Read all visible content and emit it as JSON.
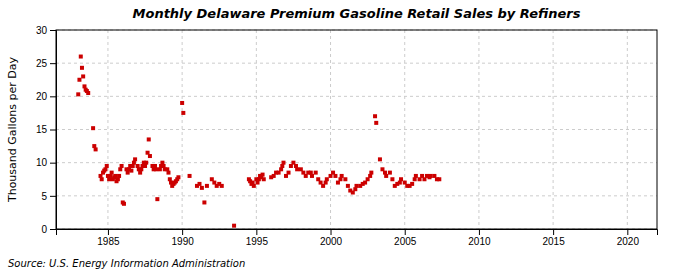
{
  "chart_data": {
    "type": "scatter",
    "title": "Monthly Delaware Premium Gasoline Retail Sales by Refiners",
    "ylabel": "Thousand Gallons per Day",
    "annotations": [
      "Source: U.S. Energy Information Administration"
    ],
    "color": "#CC0000",
    "marker": "square",
    "grid": true,
    "xlim": [
      1981.5,
      2022
    ],
    "ylim": [
      0,
      30
    ],
    "xticks": [
      1985,
      1990,
      1995,
      2000,
      2005,
      2010,
      2015,
      2020
    ],
    "yticks": [
      0,
      5,
      10,
      15,
      20,
      25,
      30
    ],
    "x": [
      1983.0,
      1983.08,
      1983.17,
      1983.25,
      1983.33,
      1983.42,
      1983.5,
      1983.58,
      1983.67,
      1984.0,
      1984.08,
      1984.17,
      1984.5,
      1984.58,
      1984.67,
      1984.75,
      1984.83,
      1984.92,
      1985.0,
      1985.08,
      1985.17,
      1985.25,
      1985.33,
      1985.42,
      1985.5,
      1985.58,
      1985.67,
      1985.75,
      1985.83,
      1985.92,
      1986.0,
      1986.08,
      1986.25,
      1986.33,
      1986.42,
      1986.5,
      1986.58,
      1986.67,
      1986.75,
      1986.83,
      1987.0,
      1987.08,
      1987.17,
      1987.25,
      1987.33,
      1987.42,
      1987.5,
      1987.58,
      1987.67,
      1987.75,
      1987.83,
      1988.0,
      1988.08,
      1988.17,
      1988.25,
      1988.33,
      1988.5,
      1988.58,
      1988.67,
      1988.75,
      1988.83,
      1989.0,
      1989.08,
      1989.17,
      1989.25,
      1989.33,
      1989.42,
      1989.5,
      1989.58,
      1989.67,
      1989.75,
      1990.0,
      1990.08,
      1990.5,
      1991.0,
      1991.17,
      1991.33,
      1991.5,
      1991.67,
      1992.0,
      1992.17,
      1992.33,
      1992.5,
      1992.67,
      1993.5,
      1994.5,
      1994.58,
      1994.67,
      1994.75,
      1994.83,
      1995.0,
      1995.08,
      1995.17,
      1995.25,
      1995.33,
      1995.42,
      1995.5,
      1996.0,
      1996.17,
      1996.33,
      1996.5,
      1996.67,
      1996.75,
      1996.83,
      1997.0,
      1997.17,
      1997.33,
      1997.5,
      1997.67,
      1997.75,
      1998.0,
      1998.17,
      1998.33,
      1998.5,
      1998.67,
      1998.75,
      1999.0,
      1999.17,
      1999.33,
      1999.5,
      1999.67,
      1999.75,
      2000.0,
      2000.17,
      2000.33,
      2000.5,
      2000.67,
      2000.75,
      2001.0,
      2001.17,
      2001.33,
      2001.5,
      2001.67,
      2001.75,
      2002.0,
      2002.17,
      2002.33,
      2002.5,
      2002.67,
      2002.75,
      2003.0,
      2003.08,
      2003.33,
      2003.5,
      2003.67,
      2003.75,
      2004.0,
      2004.17,
      2004.33,
      2004.5,
      2004.67,
      2004.75,
      2005.0,
      2005.17,
      2005.33,
      2005.5,
      2005.67,
      2005.75,
      2006.0,
      2006.17,
      2006.33,
      2006.5,
      2006.67,
      2006.75,
      2007.0,
      2007.17,
      2007.33
    ],
    "values": [
      20.3,
      22.5,
      26.0,
      24.3,
      23.0,
      21.5,
      21.0,
      20.8,
      20.5,
      15.2,
      12.5,
      12.0,
      8.0,
      7.5,
      8.5,
      8.8,
      9.0,
      9.5,
      8.0,
      7.5,
      8.0,
      8.5,
      7.5,
      7.8,
      8.0,
      7.2,
      7.5,
      8.0,
      9.0,
      9.5,
      4.0,
      3.8,
      9.0,
      8.5,
      9.0,
      9.5,
      8.8,
      9.5,
      10.0,
      10.5,
      9.5,
      9.0,
      8.5,
      9.0,
      9.5,
      10.0,
      9.5,
      10.0,
      11.5,
      13.5,
      11.0,
      9.5,
      9.0,
      9.5,
      9.0,
      4.5,
      9.0,
      9.5,
      10.0,
      9.5,
      9.0,
      9.0,
      8.5,
      7.5,
      7.0,
      6.5,
      6.8,
      7.0,
      7.2,
      7.5,
      7.8,
      19.0,
      17.5,
      8.0,
      6.5,
      6.8,
      6.2,
      4.0,
      6.5,
      7.5,
      7.0,
      6.5,
      6.8,
      6.5,
      0.5,
      7.5,
      7.2,
      6.8,
      7.0,
      6.5,
      7.5,
      7.0,
      7.5,
      8.0,
      7.8,
      8.2,
      7.5,
      7.8,
      8.0,
      8.5,
      8.5,
      9.0,
      9.5,
      10.0,
      8.0,
      8.5,
      9.5,
      10.0,
      9.5,
      9.0,
      9.0,
      8.5,
      8.0,
      8.5,
      8.5,
      8.0,
      8.5,
      7.5,
      7.0,
      6.5,
      7.0,
      7.5,
      8.0,
      8.5,
      8.0,
      7.0,
      7.5,
      8.0,
      7.5,
      6.5,
      5.8,
      5.5,
      6.0,
      6.5,
      6.5,
      6.8,
      7.0,
      7.5,
      8.0,
      8.5,
      17.0,
      16.0,
      10.5,
      9.0,
      8.5,
      8.0,
      8.5,
      7.5,
      6.5,
      6.8,
      7.0,
      7.5,
      7.0,
      6.5,
      6.5,
      6.8,
      7.5,
      8.0,
      7.5,
      8.0,
      7.5,
      8.0,
      7.8,
      8.0,
      8.0,
      7.5,
      7.5
    ]
  }
}
